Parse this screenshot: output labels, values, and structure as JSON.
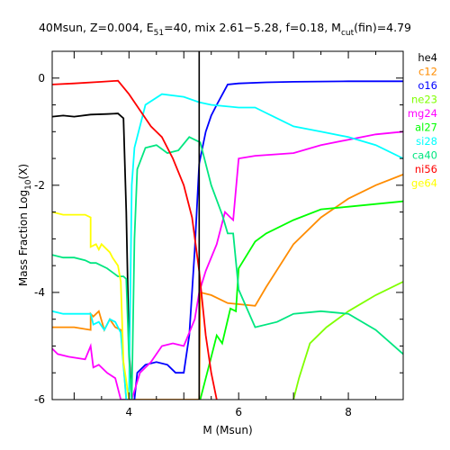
{
  "chart_data": {
    "type": "line",
    "title": "40Msun, Z=0.004, E",
    "title_sub": "51",
    "title_mid": "=40, mix 2.61−5.28, f=0.18, M",
    "title_sub2": "cut",
    "title_end": "(fin)=4.79",
    "xlabel": "M (Msun)",
    "ylabel_main": "Mass Fraction Log",
    "ylabel_sub": "10",
    "ylabel_end": "(X)",
    "xlim": [
      2.6,
      9.0
    ],
    "ylim": [
      -6.0,
      0.5
    ],
    "x_ticks": [
      4,
      6,
      8
    ],
    "y_ticks": [
      0,
      -2,
      -4,
      -6
    ],
    "vline_x": 5.28,
    "series": [
      {
        "name": "he4",
        "color": "#000000",
        "x": [
          2.6,
          2.8,
          3.0,
          3.3,
          3.6,
          3.8,
          3.9,
          3.95,
          4.0,
          4.05
        ],
        "y": [
          -0.72,
          -0.7,
          -0.72,
          -0.68,
          -0.67,
          -0.66,
          -0.75,
          -2.5,
          -5.0,
          -6.0
        ]
      },
      {
        "name": "c12",
        "color": "#ff8c00",
        "x": [
          2.6,
          3.0,
          3.3,
          3.3,
          3.35,
          3.45,
          3.55,
          3.65,
          3.75,
          3.85,
          3.95,
          4.05,
          5.28,
          5.3,
          5.5,
          5.8,
          6.3,
          6.5,
          7.0,
          7.5,
          8.0,
          8.5,
          9.0
        ],
        "y": [
          -4.65,
          -4.65,
          -4.7,
          -4.4,
          -4.45,
          -4.35,
          -4.7,
          -4.5,
          -4.65,
          -4.7,
          -6.0,
          -6.0,
          -6.0,
          -4.0,
          -4.05,
          -4.2,
          -4.25,
          -3.9,
          -3.1,
          -2.6,
          -2.25,
          -2.0,
          -1.8
        ]
      },
      {
        "name": "o16",
        "color": "#0000ff",
        "x": [
          4.1,
          4.15,
          4.3,
          4.5,
          4.7,
          4.85,
          5.0,
          5.1,
          5.2,
          5.28,
          5.4,
          5.5,
          5.6,
          5.8,
          6.0,
          6.5,
          7.0,
          8.0,
          9.0
        ],
        "y": [
          -6.0,
          -5.5,
          -5.35,
          -5.3,
          -5.35,
          -5.5,
          -5.5,
          -4.8,
          -3.2,
          -1.6,
          -1.0,
          -0.7,
          -0.5,
          -0.12,
          -0.1,
          -0.08,
          -0.07,
          -0.06,
          -0.06
        ]
      },
      {
        "name": "ne23",
        "color": "#7fff00",
        "x": [
          7.0,
          7.1,
          7.3,
          7.6,
          8.0,
          8.5,
          9.0
        ],
        "y": [
          -6.0,
          -5.6,
          -4.95,
          -4.65,
          -4.35,
          -4.05,
          -3.8
        ]
      },
      {
        "name": "mg24",
        "color": "#ff00ff",
        "x": [
          2.6,
          2.7,
          2.9,
          3.2,
          3.3,
          3.35,
          3.45,
          3.6,
          3.75,
          3.85,
          3.95,
          4.05,
          4.2,
          4.4,
          4.6,
          4.8,
          5.0,
          5.2,
          5.28,
          5.4,
          5.6,
          5.75,
          5.85,
          5.9,
          6.0,
          6.3,
          7.0,
          7.5,
          8.0,
          8.5,
          9.0
        ],
        "y": [
          -5.05,
          -5.15,
          -5.2,
          -5.25,
          -5.0,
          -5.4,
          -5.35,
          -5.5,
          -5.6,
          -6.0,
          -6.0,
          -6.0,
          -5.5,
          -5.3,
          -5.0,
          -4.95,
          -5.0,
          -4.5,
          -4.0,
          -3.6,
          -3.1,
          -2.5,
          -2.6,
          -2.65,
          -1.5,
          -1.45,
          -1.4,
          -1.25,
          -1.15,
          -1.05,
          -1.0
        ]
      },
      {
        "name": "al27",
        "color": "#00ff00",
        "x": [
          5.3,
          5.45,
          5.55,
          5.6,
          5.7,
          5.85,
          5.95,
          6.0,
          6.3,
          6.5,
          7.0,
          7.5,
          8.0,
          8.5,
          9.0
        ],
        "y": [
          -6.0,
          -5.4,
          -5.0,
          -4.8,
          -4.95,
          -4.3,
          -4.35,
          -3.55,
          -3.05,
          -2.9,
          -2.65,
          -2.45,
          -2.4,
          -2.35,
          -2.3
        ]
      },
      {
        "name": "si28",
        "color": "#00ffff",
        "x": [
          2.6,
          2.8,
          3.0,
          3.3,
          3.35,
          3.45,
          3.55,
          3.65,
          3.75,
          3.85,
          3.95,
          4.0,
          4.05,
          4.1,
          4.3,
          4.6,
          5.0,
          5.28,
          5.5,
          6.0,
          6.3,
          6.5,
          7.0,
          7.5,
          8.0,
          8.5,
          9.0
        ],
        "y": [
          -4.35,
          -4.4,
          -4.4,
          -4.4,
          -4.6,
          -4.55,
          -4.7,
          -4.5,
          -4.55,
          -4.75,
          -6.0,
          -6.0,
          -2.0,
          -1.3,
          -0.5,
          -0.3,
          -0.35,
          -0.45,
          -0.5,
          -0.55,
          -0.55,
          -0.65,
          -0.9,
          -1.0,
          -1.1,
          -1.25,
          -1.5
        ]
      },
      {
        "name": "ca40",
        "color": "#00e680",
        "x": [
          2.6,
          2.8,
          3.0,
          3.2,
          3.3,
          3.4,
          3.6,
          3.8,
          3.9,
          3.95,
          4.0,
          4.05,
          4.1,
          4.15,
          4.3,
          4.5,
          4.7,
          4.9,
          5.1,
          5.3,
          5.5,
          5.7,
          5.8,
          5.9,
          6.0,
          6.3,
          6.7,
          7.0,
          7.5,
          8.0,
          8.5,
          9.0
        ],
        "y": [
          -3.3,
          -3.35,
          -3.35,
          -3.4,
          -3.45,
          -3.45,
          -3.55,
          -3.7,
          -3.7,
          -3.75,
          -5.2,
          -6.0,
          -3.0,
          -1.7,
          -1.3,
          -1.25,
          -1.4,
          -1.35,
          -1.1,
          -1.2,
          -2.0,
          -2.55,
          -2.9,
          -2.9,
          -3.95,
          -4.65,
          -4.55,
          -4.4,
          -4.35,
          -4.4,
          -4.7,
          -5.15
        ]
      },
      {
        "name": "ni56",
        "color": "#ff0000",
        "x": [
          2.6,
          3.0,
          3.5,
          3.8,
          4.0,
          4.2,
          4.4,
          4.6,
          4.8,
          5.0,
          5.15,
          5.28,
          5.4,
          5.5,
          5.6
        ],
        "y": [
          -0.12,
          -0.1,
          -0.07,
          -0.05,
          -0.3,
          -0.6,
          -0.9,
          -1.1,
          -1.5,
          -2.0,
          -2.6,
          -3.6,
          -4.8,
          -5.5,
          -6.0
        ]
      },
      {
        "name": "ge64",
        "color": "#ffff00",
        "x": [
          2.6,
          2.8,
          3.0,
          3.2,
          3.3,
          3.3,
          3.4,
          3.45,
          3.5,
          3.6,
          3.65,
          3.7,
          3.8,
          3.85,
          3.9,
          4.0
        ],
        "y": [
          -2.5,
          -2.55,
          -2.55,
          -2.55,
          -2.6,
          -3.15,
          -3.1,
          -3.2,
          -3.1,
          -3.2,
          -3.25,
          -3.35,
          -3.5,
          -3.8,
          -5.3,
          -6.0
        ]
      }
    ]
  }
}
